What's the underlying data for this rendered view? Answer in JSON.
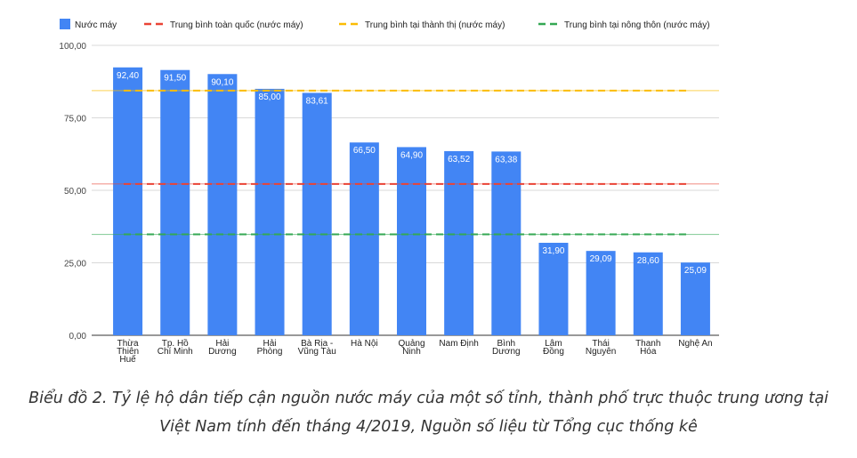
{
  "chart_data": {
    "type": "bar",
    "categories": [
      [
        "Thừa",
        "Thiên",
        "Huế"
      ],
      [
        "Tp. Hồ",
        "Chí Minh"
      ],
      [
        "Hải",
        "Dương"
      ],
      [
        "Hải",
        "Phòng"
      ],
      [
        "Bà Rịa -",
        "Vũng Tàu"
      ],
      [
        "Hà Nội"
      ],
      [
        "Quảng",
        "Ninh"
      ],
      [
        "Nam Định"
      ],
      [
        "Bình",
        "Dương"
      ],
      [
        "Lâm",
        "Đồng"
      ],
      [
        "Thái",
        "Nguyên"
      ],
      [
        "Thanh",
        "Hóa"
      ],
      [
        "Nghệ An"
      ]
    ],
    "series": [
      {
        "name": "Nước máy",
        "color": "#4285f4",
        "values": [
          92.4,
          91.5,
          90.1,
          85.0,
          83.61,
          66.5,
          64.9,
          63.52,
          63.38,
          31.9,
          29.09,
          28.6,
          25.09
        ],
        "value_labels": [
          "92,40",
          "91,50",
          "90,10",
          "85,00",
          "83,61",
          "66,50",
          "64,90",
          "63,52",
          "63,38",
          "31,90",
          "29,09",
          "28,60",
          "25,09"
        ]
      }
    ],
    "reference_lines": [
      {
        "name": "Trung bình toàn quốc (nước máy)",
        "color": "#ea4335",
        "value": 52.2
      },
      {
        "name": "Trung bình tại thành thị (nước máy)",
        "color": "#fbbc04",
        "value": 84.4
      },
      {
        "name": "Trung bình tại nông thôn (nước máy)",
        "color": "#34a853",
        "value": 34.8
      }
    ],
    "ylim": [
      0,
      100
    ],
    "yticks": [
      0,
      25,
      50,
      75,
      100
    ],
    "ytick_labels": [
      "0,00",
      "25,00",
      "50,00",
      "75,00",
      "100,00"
    ],
    "grid": true,
    "legend_position": "top"
  },
  "caption": {
    "line1": "Biểu đồ 2. Tỷ lệ hộ dân tiếp cận nguồn nước máy của một số tỉnh, thành phố trực thuộc trung ương tại",
    "line2": "Việt Nam tính đến tháng 4/2019, Nguồn số liệu từ Tổng cục thống kê"
  }
}
